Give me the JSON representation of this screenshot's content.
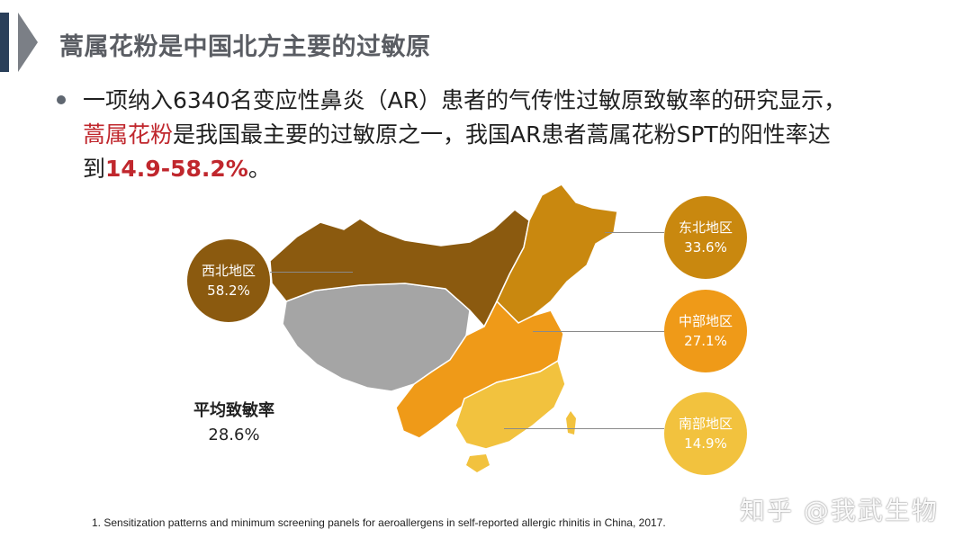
{
  "title": "蒿属花粉是中国北方主要的过敏原",
  "bullet": {
    "line1": "一项纳入6340名变应性鼻炎（AR）患者的气传性过敏原致敏率的研究显示，",
    "line2_highlight": "蒿属花粉",
    "line2_rest": "是我国最主要的过敏原之一，我国AR患者蒿属花粉SPT的阳性率达",
    "line3_prefix": "到",
    "line3_value": "14.9-58.2%",
    "line3_suffix": "。"
  },
  "regions": {
    "northwest": {
      "name": "西北地区",
      "value": "58.2%",
      "color": "#8b5a0f"
    },
    "northeast": {
      "name": "东北地区",
      "value": "33.6%",
      "color": "#c9880f"
    },
    "central": {
      "name": "中部地区",
      "value": "27.1%",
      "color": "#ef9a18"
    },
    "south": {
      "name": "南部地区",
      "value": "14.9%",
      "color": "#f2c23e"
    }
  },
  "average": {
    "label": "平均致敏率",
    "value": "28.6%"
  },
  "footnote": "1. Sensitization patterns and minimum screening panels for aeroallergens in self-reported allergic rhinitis in China, 2017.",
  "watermark": "知乎 @我武生物",
  "colors": {
    "accent_red": "#c0272d",
    "header_bar": "#2a3f5a",
    "map_gray": "#a5a5a5"
  }
}
